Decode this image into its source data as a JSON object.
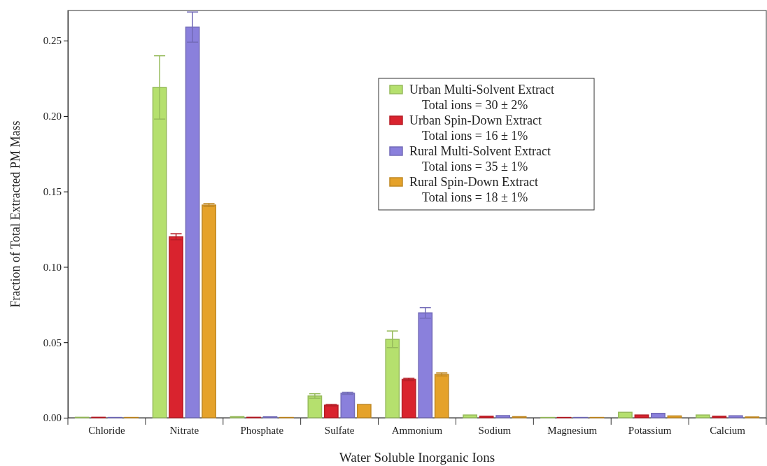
{
  "chart_data": {
    "type": "bar",
    "xlabel": "Water Soluble Inorganic Ions",
    "ylabel": "Fraction of Total Extracted PM Mass",
    "categories": [
      "Chloride",
      "Nitrate",
      "Phosphate",
      "Sulfate",
      "Ammonium",
      "Sodium",
      "Magnesium",
      "Potassium",
      "Calcium"
    ],
    "ylim": [
      0,
      0.27
    ],
    "yticks": [
      {
        "value": 0,
        "label": "0.00"
      },
      {
        "value": 0.05,
        "label": "0.05"
      },
      {
        "value": 0.1,
        "label": "0.10"
      },
      {
        "value": 0.15,
        "label": "0.15"
      },
      {
        "value": 0.2,
        "label": "0.20"
      },
      {
        "value": 0.25,
        "label": "0.25"
      }
    ],
    "series": [
      {
        "name": "Urban Multi-Solvent Extract",
        "color": "#b5e06e",
        "values": [
          0.0003,
          0.219,
          0.0007,
          0.0144,
          0.052,
          0.0018,
          0.0002,
          0.0036,
          0.0018
        ],
        "errors": [
          null,
          0.021,
          null,
          0.0015,
          0.0055,
          null,
          null,
          null,
          null
        ]
      },
      {
        "name": "Urban Spin-Down Extract",
        "color": "#d9232e",
        "values": [
          0.0003,
          0.12,
          0.0003,
          0.0083,
          0.0254,
          0.001,
          0.0002,
          0.0018,
          0.001
        ],
        "errors": [
          null,
          0.002,
          null,
          0.0005,
          0.0008,
          null,
          null,
          null,
          null
        ]
      },
      {
        "name": "Rural Multi-Solvent Extract",
        "color": "#8a80dc",
        "values": [
          0.0002,
          0.259,
          0.0006,
          0.0162,
          0.0695,
          0.0014,
          0.0002,
          0.0029,
          0.0013
        ],
        "errors": [
          null,
          0.01,
          null,
          0.0007,
          0.0035,
          null,
          null,
          null,
          null
        ]
      },
      {
        "name": "Rural Spin-Down Extract",
        "color": "#e5a22a",
        "values": [
          0.0002,
          0.141,
          0.0002,
          0.0088,
          0.0287,
          0.0007,
          0.0002,
          0.0012,
          0.0005
        ],
        "errors": [
          null,
          0.001,
          null,
          null,
          0.001,
          null,
          null,
          null,
          null
        ]
      }
    ],
    "annotations": [
      "Total ions = 30 ± 2%",
      "Total ions = 16 ± 1%",
      "Total ions = 35 ± 1%",
      "Total ions = 18 ± 1%"
    ],
    "legend": "top right",
    "grid": false
  }
}
